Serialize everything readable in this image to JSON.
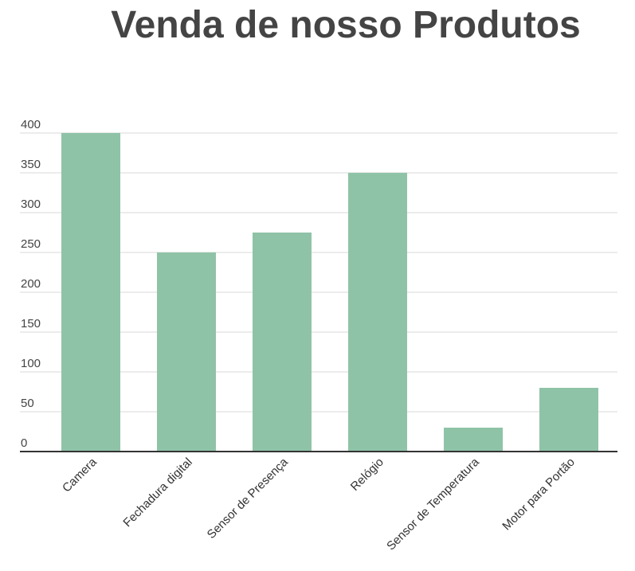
{
  "chart_data": {
    "type": "bar",
    "title": "Venda de nosso Produtos",
    "xlabel": "",
    "ylabel": "",
    "categories": [
      "Camera",
      "Fechadura digital",
      "Sensor de Presença",
      "Relógio",
      "Sensor de Temperatura",
      "Motor para Portão"
    ],
    "values": [
      400,
      250,
      275,
      350,
      30,
      80
    ],
    "ylim": [
      0,
      400
    ],
    "yticks": [
      "0",
      "50",
      "100",
      "150",
      "200",
      "250",
      "300",
      "350",
      "400"
    ],
    "grid": true,
    "legend": "none",
    "bar_color": "#8fc3a7",
    "grid_color": "#d9d9d9",
    "axis_color": "#333333"
  }
}
